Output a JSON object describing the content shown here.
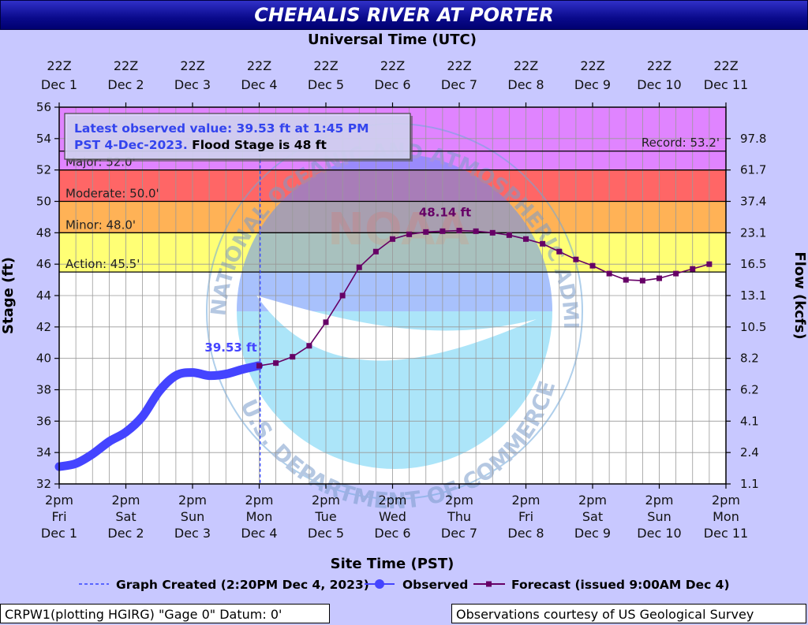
{
  "title": "CHEHALIS RIVER AT PORTER",
  "chart_data": {
    "type": "line",
    "title": "CHEHALIS RIVER AT PORTER",
    "top_axis_title": "Universal Time (UTC)",
    "top_ticks": [
      [
        "22Z",
        "Dec 1"
      ],
      [
        "22Z",
        "Dec 2"
      ],
      [
        "22Z",
        "Dec 3"
      ],
      [
        "22Z",
        "Dec 4"
      ],
      [
        "22Z",
        "Dec 5"
      ],
      [
        "22Z",
        "Dec 6"
      ],
      [
        "22Z",
        "Dec 7"
      ],
      [
        "22Z",
        "Dec 8"
      ],
      [
        "22Z",
        "Dec 9"
      ],
      [
        "22Z",
        "Dec 10"
      ],
      [
        "22Z",
        "Dec 11"
      ]
    ],
    "xlabel": "Site Time (PST)",
    "x_ticks": [
      [
        "2pm",
        "Fri",
        "Dec 1"
      ],
      [
        "2pm",
        "Sat",
        "Dec 2"
      ],
      [
        "2pm",
        "Sun",
        "Dec 3"
      ],
      [
        "2pm",
        "Mon",
        "Dec 4"
      ],
      [
        "2pm",
        "Tue",
        "Dec 5"
      ],
      [
        "2pm",
        "Wed",
        "Dec 6"
      ],
      [
        "2pm",
        "Thu",
        "Dec 7"
      ],
      [
        "2pm",
        "Fri",
        "Dec 8"
      ],
      [
        "2pm",
        "Sat",
        "Dec 9"
      ],
      [
        "2pm",
        "Sun",
        "Dec 10"
      ],
      [
        "2pm",
        "Mon",
        "Dec 11"
      ]
    ],
    "xlim": [
      "2023-12-01 14:00",
      "2023-12-11 14:00"
    ],
    "ylabel": "Stage (ft)",
    "ylim": [
      32,
      56
    ],
    "y_ticks": [
      32,
      34,
      36,
      38,
      40,
      42,
      44,
      46,
      48,
      50,
      52,
      54,
      56
    ],
    "y2label": "Flow (kcfs)",
    "y2_ticks": [
      {
        "stage": 32,
        "label": "1.1"
      },
      {
        "stage": 34,
        "label": "2.4"
      },
      {
        "stage": 36,
        "label": "4.1"
      },
      {
        "stage": 38,
        "label": "6.2"
      },
      {
        "stage": 40,
        "label": "8.2"
      },
      {
        "stage": 42,
        "label": "10.5"
      },
      {
        "stage": 44,
        "label": "13.1"
      },
      {
        "stage": 46,
        "label": "16.5"
      },
      {
        "stage": 48,
        "label": "23.1"
      },
      {
        "stage": 50,
        "label": "37.4"
      },
      {
        "stage": 52,
        "label": "61.7"
      },
      {
        "stage": 54,
        "label": "97.8"
      }
    ],
    "grid": true,
    "flood_categories": [
      {
        "name": "Action",
        "label": "Action: 45.5'",
        "from": 45.5,
        "to": 48,
        "color": "#ffff66"
      },
      {
        "name": "Minor",
        "label": "Minor: 48.0'",
        "from": 48,
        "to": 50,
        "color": "#ffaa44"
      },
      {
        "name": "Moderate",
        "label": "Moderate: 50.0'",
        "from": 50,
        "to": 52,
        "color": "#ff5555"
      },
      {
        "name": "Major",
        "label": "Major: 52.0'",
        "from": 52,
        "to": 56,
        "color": "#dd77ff"
      }
    ],
    "record": {
      "label": "Record: 53.2'",
      "value": 53.2
    },
    "info_box": {
      "line1": "Latest observed value: 39.53 ft at 1:45 PM",
      "line2a": "PST 4-Dec-2023.",
      "line2b": "Flood Stage is 48 ft"
    },
    "graph_created": "2023-12-04 14:20",
    "series": [
      {
        "name": "Observed",
        "color": "#4444ff",
        "x": [
          "2023-12-01 14:00",
          "2023-12-01 20:00",
          "2023-12-02 02:00",
          "2023-12-02 08:00",
          "2023-12-02 14:00",
          "2023-12-02 20:00",
          "2023-12-03 02:00",
          "2023-12-03 08:00",
          "2023-12-03 14:00",
          "2023-12-03 20:00",
          "2023-12-04 02:00",
          "2023-12-04 08:00",
          "2023-12-04 13:45"
        ],
        "values": [
          33.1,
          33.3,
          33.9,
          34.7,
          35.3,
          36.3,
          37.9,
          38.9,
          39.1,
          38.9,
          39.0,
          39.3,
          39.53
        ]
      },
      {
        "name": "Forecast (issued 9:00AM Dec 4)",
        "color": "#660066",
        "x": [
          "2023-12-04 14:00",
          "2023-12-04 20:00",
          "2023-12-05 02:00",
          "2023-12-05 08:00",
          "2023-12-05 14:00",
          "2023-12-05 20:00",
          "2023-12-06 02:00",
          "2023-12-06 08:00",
          "2023-12-06 14:00",
          "2023-12-06 20:00",
          "2023-12-07 02:00",
          "2023-12-07 08:00",
          "2023-12-07 14:00",
          "2023-12-07 20:00",
          "2023-12-08 02:00",
          "2023-12-08 08:00",
          "2023-12-08 14:00",
          "2023-12-08 20:00",
          "2023-12-09 02:00",
          "2023-12-09 08:00",
          "2023-12-09 14:00",
          "2023-12-09 20:00",
          "2023-12-10 02:00",
          "2023-12-10 08:00",
          "2023-12-10 14:00",
          "2023-12-10 20:00",
          "2023-12-11 02:00",
          "2023-12-11 08:00"
        ],
        "values": [
          39.53,
          39.7,
          40.1,
          40.8,
          42.3,
          44.0,
          45.8,
          46.8,
          47.6,
          47.9,
          48.05,
          48.1,
          48.14,
          48.1,
          48.0,
          47.85,
          47.6,
          47.3,
          46.8,
          46.3,
          45.9,
          45.4,
          45.0,
          44.95,
          45.1,
          45.4,
          45.7,
          46.0
        ]
      }
    ],
    "annotations": [
      {
        "text": "39.53 ft",
        "x": "2023-12-04 13:45",
        "y": 39.53,
        "color": "#4444ff"
      },
      {
        "text": "48.14 ft",
        "x": "2023-12-07 14:00",
        "y": 48.14,
        "color": "#660066"
      }
    ],
    "legend": {
      "graph_created": "Graph Created (2:20PM Dec 4, 2023)",
      "observed": "Observed",
      "forecast": "Forecast (issued 9:00AM Dec 4)"
    },
    "watermark": {
      "arc_top": "ATMOSPHERIC ADMINISTRATION",
      "arc_left": "NATIONAL OCEANIC AND",
      "arc_bottom": "U.S. DEPARTMENT OF COMMERCE",
      "center": "NOAA"
    }
  },
  "footer": {
    "left": "CRPW1(plotting HGIRG) \"Gage 0\" Datum: 0'",
    "right": "Observations courtesy of US Geological Survey"
  }
}
